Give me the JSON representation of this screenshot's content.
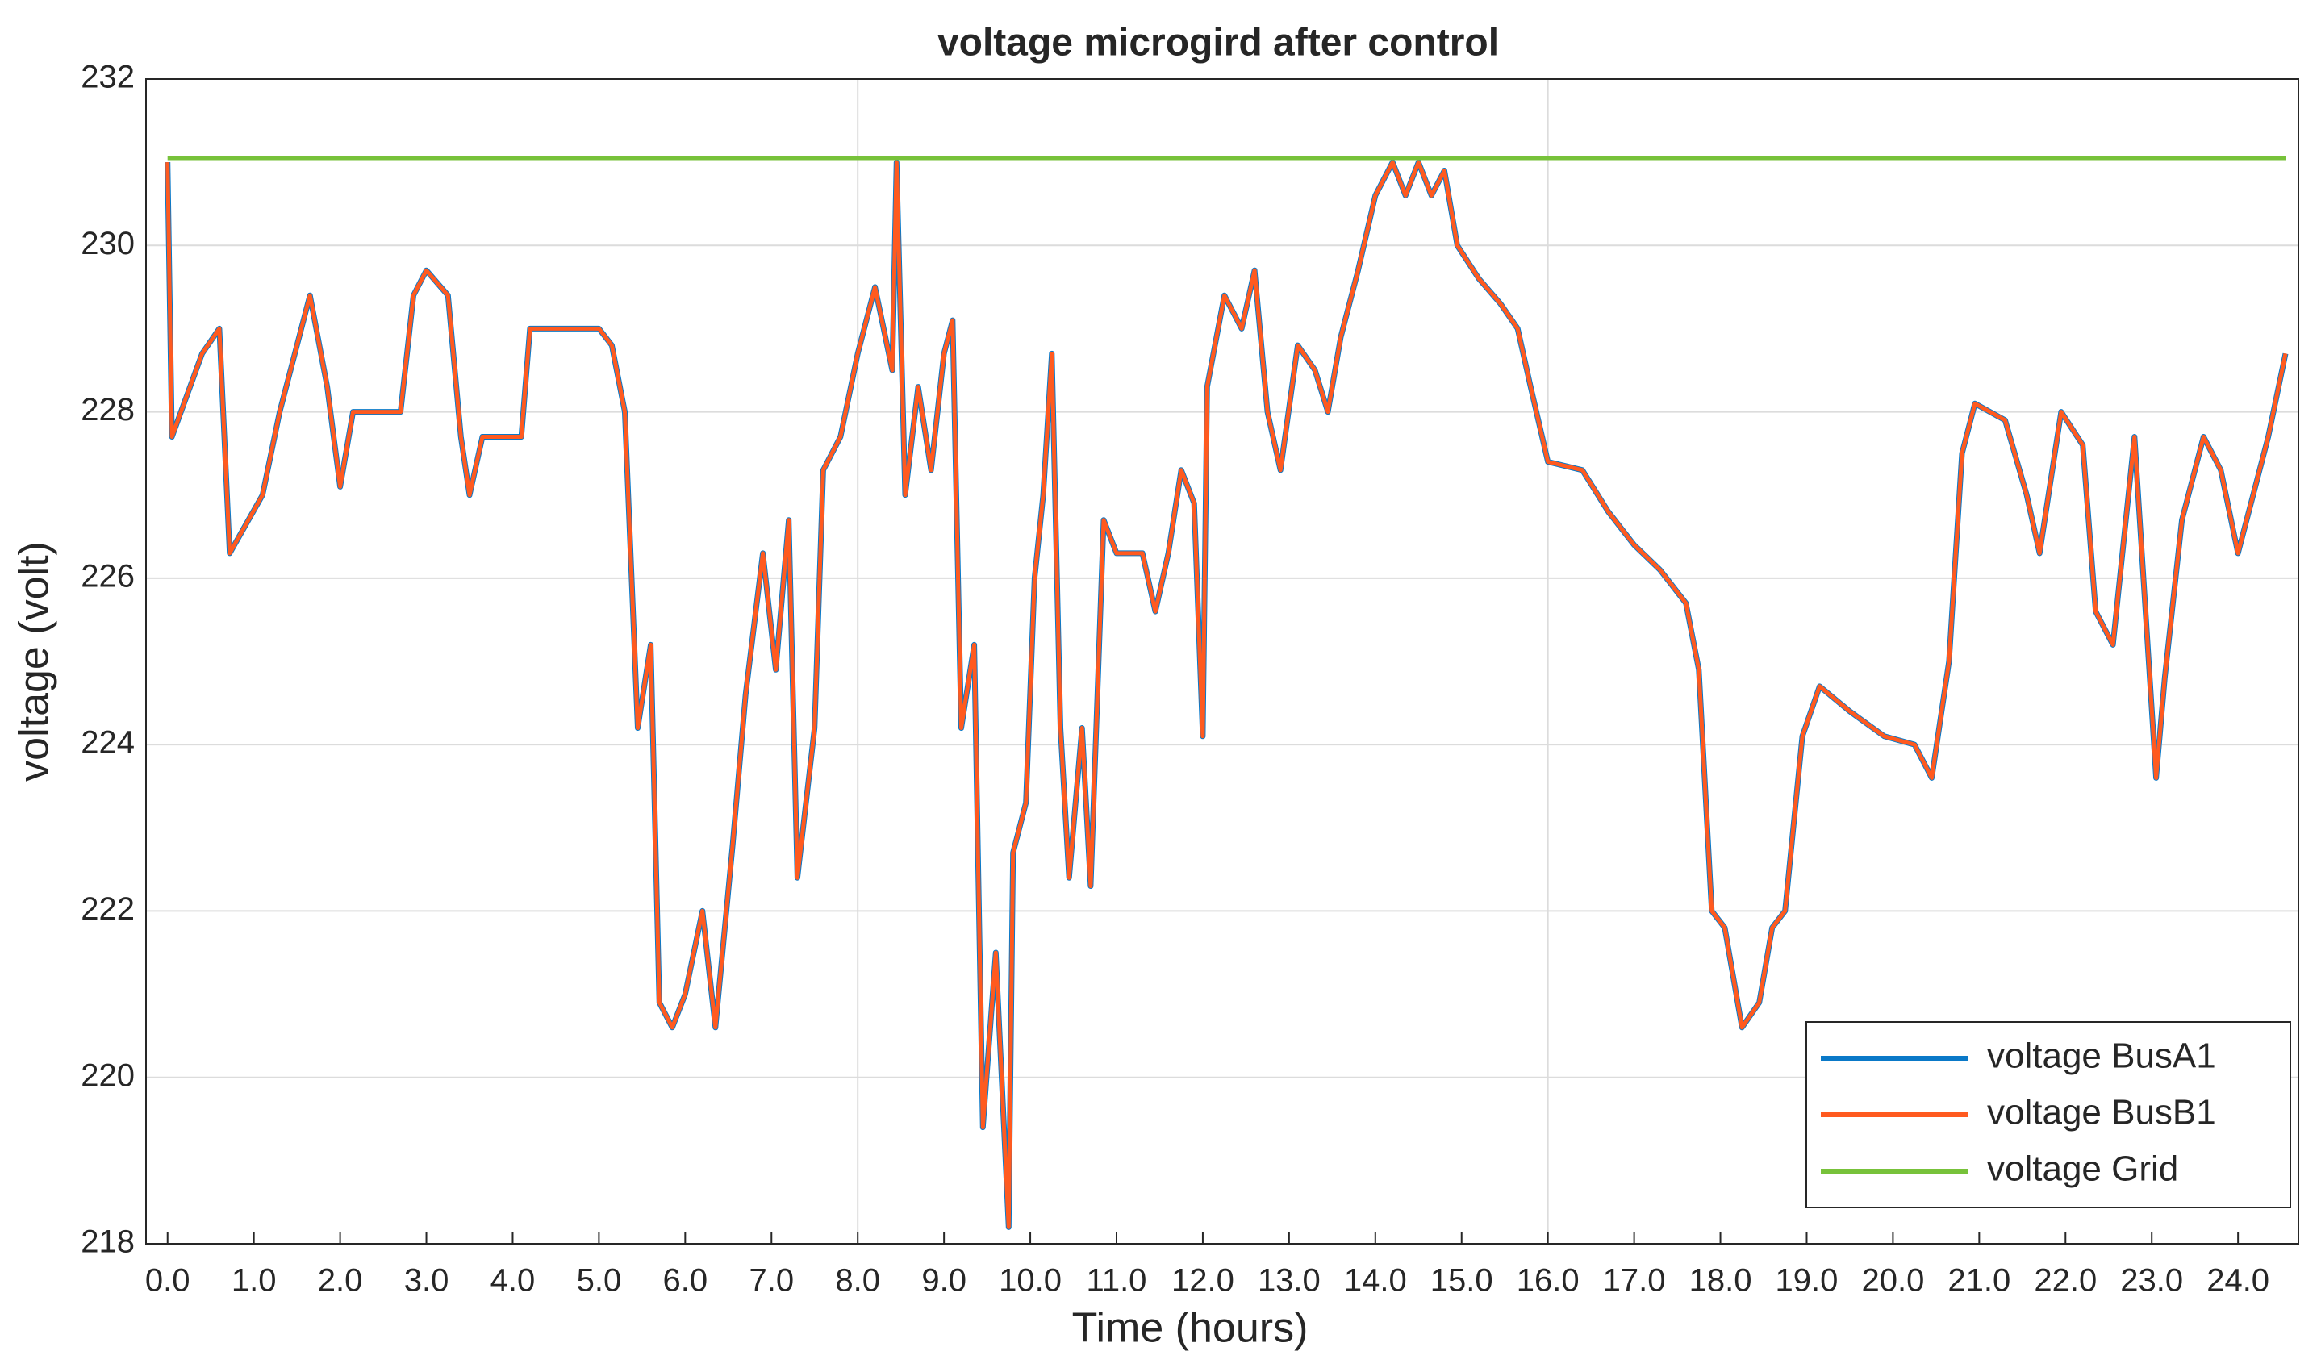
{
  "chart_data": {
    "type": "line",
    "title": "voltage microgird after control",
    "xlabel": "Time (hours)",
    "ylabel": "voltage (volt)",
    "x": [
      0,
      0.05,
      0.4,
      0.6,
      0.72,
      1.1,
      1.3,
      1.65,
      1.85,
      2.0,
      2.15,
      2.7,
      2.85,
      3.0,
      3.25,
      3.4,
      3.5,
      3.65,
      4.1,
      4.2,
      5.0,
      5.15,
      5.3,
      5.45,
      5.6,
      5.7,
      5.85,
      6.0,
      6.2,
      6.35,
      6.55,
      6.7,
      6.9,
      7.05,
      7.2,
      7.3,
      7.5,
      7.6,
      7.8,
      8.0,
      8.2,
      8.4,
      8.45,
      8.55,
      8.7,
      8.85,
      9.0,
      9.1,
      9.2,
      9.35,
      9.45,
      9.6,
      9.75,
      9.8,
      9.95,
      10.05,
      10.15,
      10.25,
      10.35,
      10.45,
      10.6,
      10.7,
      10.85,
      11.0,
      11.3,
      11.45,
      11.6,
      11.75,
      11.9,
      12.0,
      12.05,
      12.25,
      12.45,
      12.6,
      12.75,
      12.9,
      13.1,
      13.3,
      13.45,
      13.6,
      13.8,
      14.0,
      14.2,
      14.35,
      14.5,
      14.65,
      14.8,
      14.95,
      15.2,
      15.45,
      15.65,
      15.8,
      16.0,
      16.4,
      16.7,
      17.0,
      17.3,
      17.6,
      17.75,
      17.9,
      18.05,
      18.25,
      18.45,
      18.6,
      18.75,
      18.95,
      19.15,
      19.5,
      19.9,
      20.25,
      20.45,
      20.65,
      20.8,
      20.95,
      21.3,
      21.55,
      21.7,
      21.95,
      22.2,
      22.35,
      22.55,
      22.8,
      23.05,
      23.15,
      23.35,
      23.6,
      23.8,
      24.0,
      24.15,
      24.35,
      24.55
    ],
    "series": [
      {
        "name": "voltage BusA1",
        "color": "#0a79c8",
        "values": [
          231.0,
          227.7,
          228.7,
          229.0,
          226.3,
          227.0,
          228.0,
          229.4,
          228.3,
          227.1,
          228.0,
          228.0,
          229.4,
          229.7,
          229.4,
          227.7,
          227.0,
          227.7,
          227.7,
          229.0,
          229.0,
          228.8,
          228.0,
          224.2,
          225.2,
          220.9,
          220.6,
          221.0,
          222.0,
          220.6,
          222.8,
          224.6,
          226.3,
          224.9,
          226.7,
          222.4,
          224.2,
          227.3,
          227.7,
          228.7,
          229.5,
          228.5,
          231.0,
          227.0,
          228.3,
          227.3,
          228.7,
          229.1,
          224.2,
          225.2,
          219.4,
          221.5,
          218.2,
          222.7,
          223.3,
          226.0,
          227.0,
          228.7,
          224.2,
          222.4,
          224.2,
          222.3,
          226.7,
          226.3,
          226.3,
          225.6,
          226.3,
          227.3,
          226.9,
          224.1,
          228.3,
          229.4,
          229.0,
          229.7,
          228.0,
          227.3,
          228.8,
          228.5,
          228.0,
          228.9,
          229.7,
          230.6,
          231.0,
          230.6,
          231.0,
          230.6,
          230.9,
          230.0,
          229.6,
          229.3,
          229.0,
          228.3,
          227.4,
          227.3,
          226.8,
          226.4,
          226.1,
          225.7,
          224.9,
          222.0,
          221.8,
          220.6,
          220.9,
          221.8,
          222.0,
          224.1,
          224.7,
          224.4,
          224.1,
          224.0,
          223.6,
          225.0,
          227.5,
          228.1,
          227.9,
          227.0,
          226.3,
          228.0,
          227.6,
          225.6,
          225.2,
          227.7,
          223.6,
          224.8,
          226.7,
          227.7,
          227.3,
          226.3,
          226.9,
          227.7,
          228.7
        ]
      },
      {
        "name": "voltage BusB1",
        "color": "#ff5a1f",
        "values": [
          231.0,
          227.7,
          228.7,
          229.0,
          226.3,
          227.0,
          228.0,
          229.4,
          228.3,
          227.1,
          228.0,
          228.0,
          229.4,
          229.7,
          229.4,
          227.7,
          227.0,
          227.7,
          227.7,
          229.0,
          229.0,
          228.8,
          228.0,
          224.2,
          225.2,
          220.9,
          220.6,
          221.0,
          222.0,
          220.6,
          222.8,
          224.6,
          226.3,
          224.9,
          226.7,
          222.4,
          224.2,
          227.3,
          227.7,
          228.7,
          229.5,
          228.5,
          231.0,
          227.0,
          228.3,
          227.3,
          228.7,
          229.1,
          224.2,
          225.2,
          219.4,
          221.5,
          218.2,
          222.7,
          223.3,
          226.0,
          227.0,
          228.7,
          224.2,
          222.4,
          224.2,
          222.3,
          226.7,
          226.3,
          226.3,
          225.6,
          226.3,
          227.3,
          226.9,
          224.1,
          228.3,
          229.4,
          229.0,
          229.7,
          228.0,
          227.3,
          228.8,
          228.5,
          228.0,
          228.9,
          229.7,
          230.6,
          231.0,
          230.6,
          231.0,
          230.6,
          230.9,
          230.0,
          229.6,
          229.3,
          229.0,
          228.3,
          227.4,
          227.3,
          226.8,
          226.4,
          226.1,
          225.7,
          224.9,
          222.0,
          221.8,
          220.6,
          220.9,
          221.8,
          222.0,
          224.1,
          224.7,
          224.4,
          224.1,
          224.0,
          223.6,
          225.0,
          227.5,
          228.1,
          227.9,
          227.0,
          226.3,
          228.0,
          227.6,
          225.6,
          225.2,
          227.7,
          223.6,
          224.8,
          226.7,
          227.7,
          227.3,
          226.3,
          226.9,
          227.7,
          228.7
        ]
      },
      {
        "name": "voltage Grid",
        "color": "#77c23a",
        "values": [
          231.05,
          231.05,
          231.05,
          231.05,
          231.05,
          231.05,
          231.05,
          231.05,
          231.05,
          231.05,
          231.05,
          231.05,
          231.05,
          231.05,
          231.05,
          231.05,
          231.05,
          231.05,
          231.05,
          231.05,
          231.05,
          231.05,
          231.05,
          231.05,
          231.05,
          231.05,
          231.05,
          231.05,
          231.05,
          231.05,
          231.05,
          231.05,
          231.05,
          231.05,
          231.05,
          231.05,
          231.05,
          231.05,
          231.05,
          231.05,
          231.05,
          231.05,
          231.05,
          231.05,
          231.05,
          231.05,
          231.05,
          231.05,
          231.05,
          231.05,
          231.05,
          231.05,
          231.05,
          231.05,
          231.05,
          231.05,
          231.05,
          231.05,
          231.05,
          231.05,
          231.05,
          231.05,
          231.05,
          231.05,
          231.05,
          231.05,
          231.05,
          231.05,
          231.05,
          231.05,
          231.05,
          231.05,
          231.05,
          231.05,
          231.05,
          231.05,
          231.05,
          231.05,
          231.05,
          231.05,
          231.05,
          231.05,
          231.05,
          231.05,
          231.05,
          231.05,
          231.05,
          231.05,
          231.05,
          231.05,
          231.05,
          231.05,
          231.05,
          231.05,
          231.05,
          231.05,
          231.05,
          231.05,
          231.05,
          231.05,
          231.05,
          231.05,
          231.05,
          231.05,
          231.05,
          231.05,
          231.05,
          231.05,
          231.05,
          231.05,
          231.05,
          231.05,
          231.05,
          231.05,
          231.05,
          231.05,
          231.05,
          231.05,
          231.05,
          231.05,
          231.05,
          231.05,
          231.05,
          231.05,
          231.05,
          231.05,
          231.05,
          231.05,
          231.05,
          231.05,
          231.05
        ]
      }
    ],
    "xlim": [
      -0.25,
      24.7
    ],
    "xticks": [
      {
        "value": 0,
        "label": "0.0"
      },
      {
        "value": 1,
        "label": "1.0"
      },
      {
        "value": 2,
        "label": "2.0"
      },
      {
        "value": 3,
        "label": "3.0"
      },
      {
        "value": 4,
        "label": "4.0"
      },
      {
        "value": 5,
        "label": "5.0"
      },
      {
        "value": 6,
        "label": "6.0"
      },
      {
        "value": 7,
        "label": "7.0"
      },
      {
        "value": 8,
        "label": "8.0"
      },
      {
        "value": 9,
        "label": "9.0"
      },
      {
        "value": 10,
        "label": "10.0"
      },
      {
        "value": 11,
        "label": "11.0"
      },
      {
        "value": 12,
        "label": "12.0"
      },
      {
        "value": 13,
        "label": "13.0"
      },
      {
        "value": 14,
        "label": "14.0"
      },
      {
        "value": 15,
        "label": "15.0"
      },
      {
        "value": 16,
        "label": "16.0"
      },
      {
        "value": 17,
        "label": "17.0"
      },
      {
        "value": 18,
        "label": "18.0"
      },
      {
        "value": 19,
        "label": "19.0"
      },
      {
        "value": 20,
        "label": "20.0"
      },
      {
        "value": 21,
        "label": "21.0"
      },
      {
        "value": 22,
        "label": "22.0"
      },
      {
        "value": 23,
        "label": "23.0"
      },
      {
        "value": 24,
        "label": "24.0"
      }
    ],
    "ylim": [
      218,
      232
    ],
    "yticks": [
      218,
      220,
      222,
      224,
      226,
      228,
      230,
      232
    ],
    "grid": true,
    "legend": "lower right"
  }
}
